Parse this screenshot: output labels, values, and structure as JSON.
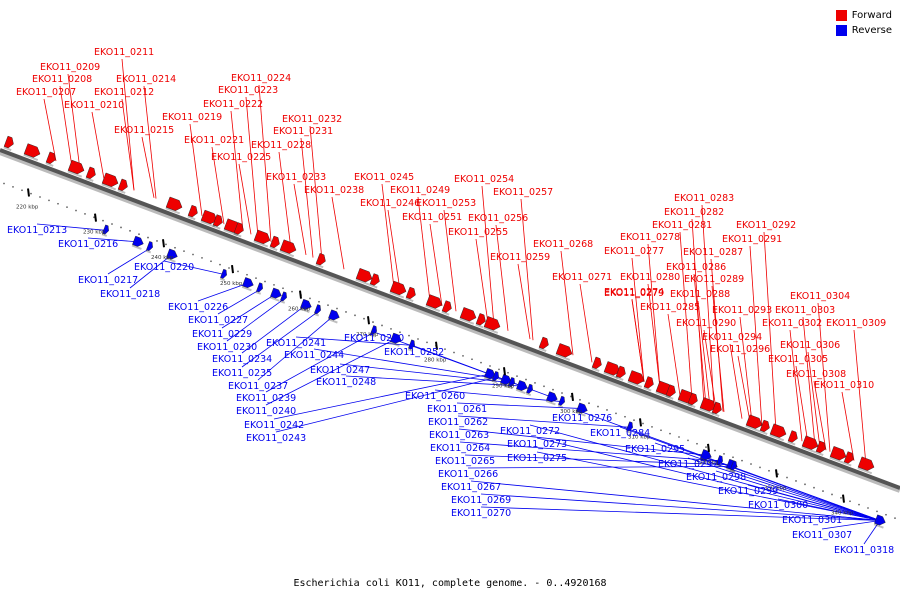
{
  "caption": "Escherichia coli KO11, complete genome. - 0..4920168",
  "legend": [
    {
      "label": "Forward",
      "color": "#ee0000"
    },
    {
      "label": "Reverse",
      "color": "#0000ee"
    }
  ],
  "colors": {
    "forward": "#ee0000",
    "reverse": "#0000ee",
    "backbone": "#555555"
  },
  "ticks": [
    "220 kbp",
    "230 kbp",
    "240 kbp",
    "250 kbp",
    "260 kbp",
    "270 kbp",
    "280 kbp",
    "290 kbp",
    "300 kbp",
    "310 kbp",
    "320 kbp",
    "330 kbp",
    "340 kbp"
  ],
  "forward_genes": [
    "EKO11_0207",
    "EKO11_0208",
    "EKO11_0209",
    "EKO11_0210",
    "EKO11_0211",
    "EKO11_0212",
    "EKO11_0214",
    "EKO11_0215",
    "EKO11_0219",
    "EKO11_0221",
    "EKO11_0222",
    "EKO11_0223",
    "EKO11_0224",
    "EKO11_0225",
    "EKO11_0228",
    "EKO11_0231",
    "EKO11_0232",
    "EKO11_0233",
    "EKO11_0238",
    "EKO11_0245",
    "EKO11_0246",
    "EKO11_0249",
    "EKO11_0251",
    "EKO11_0253",
    "EKO11_0254",
    "EKO11_0255",
    "EKO11_0256",
    "EKO11_0257",
    "EKO11_0259",
    "EKO11_0268",
    "EKO11_0271",
    "EKO11_0274",
    "EKO11_0277",
    "EKO11_0278",
    "EKO11_0279",
    "EKO11_0280",
    "EKO11_0281",
    "EKO11_0282",
    "EKO11_0283",
    "EKO11_0285",
    "EKO11_0286",
    "EKO11_0287",
    "EKO11_0288",
    "EKO11_0289",
    "EKO11_0290",
    "EKO11_0291",
    "EKO11_0292",
    "EKO11_0293",
    "EKO11_0294",
    "EKO11_0296",
    "EKO11_0302",
    "EKO11_0303",
    "EKO11_0304",
    "EKO11_0305",
    "EKO11_0306",
    "EKO11_0308",
    "EKO11_0309",
    "EKO11_0310"
  ],
  "reverse_genes": [
    "EKO11_0213",
    "EKO11_0216",
    "EKO11_0217",
    "EKO11_0218",
    "EKO11_0220",
    "EKO11_0226",
    "EKO11_0227",
    "EKO11_0229",
    "EKO11_0230",
    "EKO11_0234",
    "EKO11_0235",
    "EKO11_0237",
    "EKO11_0239",
    "EKO11_0240",
    "EKO11_0241",
    "EKO11_0242",
    "EKO11_0243",
    "EKO11_0244",
    "EKO11_0247",
    "EKO11_0248",
    "EKO11_0250",
    "EKO11_0252",
    "EKO11_0260",
    "EKO11_0261",
    "EKO11_0262",
    "EKO11_0263",
    "EKO11_0264",
    "EKO11_0265",
    "EKO11_0266",
    "EKO11_0267",
    "EKO11_0269",
    "EKO11_0270",
    "EKO11_0272",
    "EKO11_0273",
    "EKO11_0275",
    "EKO11_0276",
    "EKO11_0284",
    "EKO11_0295",
    "EKO11_0297",
    "EKO11_0298",
    "EKO11_0299",
    "EKO11_0300",
    "EKO11_0301",
    "EKO11_0307",
    "EKO11_0318"
  ]
}
